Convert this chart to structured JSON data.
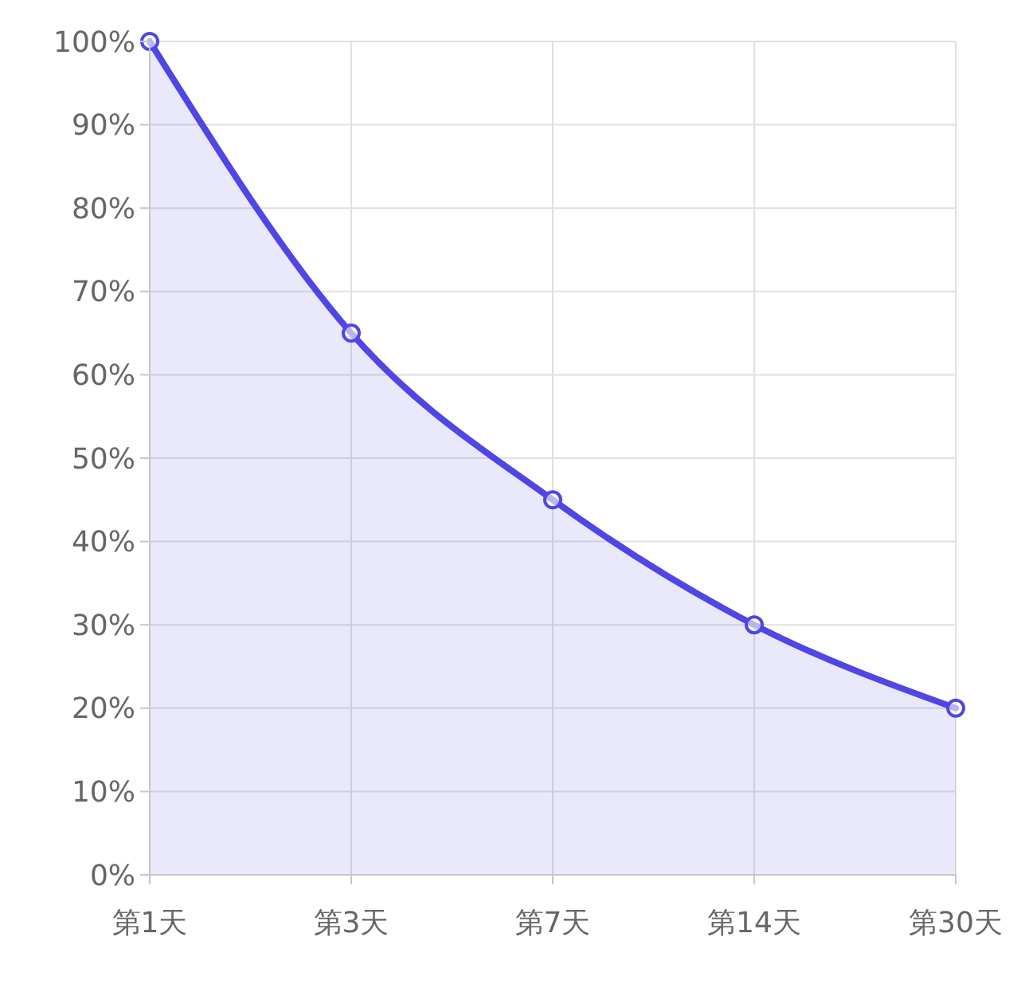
{
  "chart_data": {
    "type": "area",
    "categories": [
      "第1天",
      "第3天",
      "第7天",
      "第14天",
      "第30天"
    ],
    "series": [
      {
        "color": "#4f46e5",
        "values": [
          100,
          65,
          45,
          30,
          20
        ]
      }
    ],
    "ylim": [
      0,
      100
    ],
    "yticks": [
      {
        "value": 0,
        "label": "0%"
      },
      {
        "value": 10,
        "label": "10%"
      },
      {
        "value": 20,
        "label": "20%"
      },
      {
        "value": 30,
        "label": "30%"
      },
      {
        "value": 40,
        "label": "40%"
      },
      {
        "value": 50,
        "label": "50%"
      },
      {
        "value": 60,
        "label": "60%"
      },
      {
        "value": 70,
        "label": "70%"
      },
      {
        "value": 80,
        "label": "80%"
      },
      {
        "value": 90,
        "label": "90%"
      },
      {
        "value": 100,
        "label": "100%"
      }
    ],
    "grid": true,
    "marker": "circle",
    "line_style": "solid"
  }
}
